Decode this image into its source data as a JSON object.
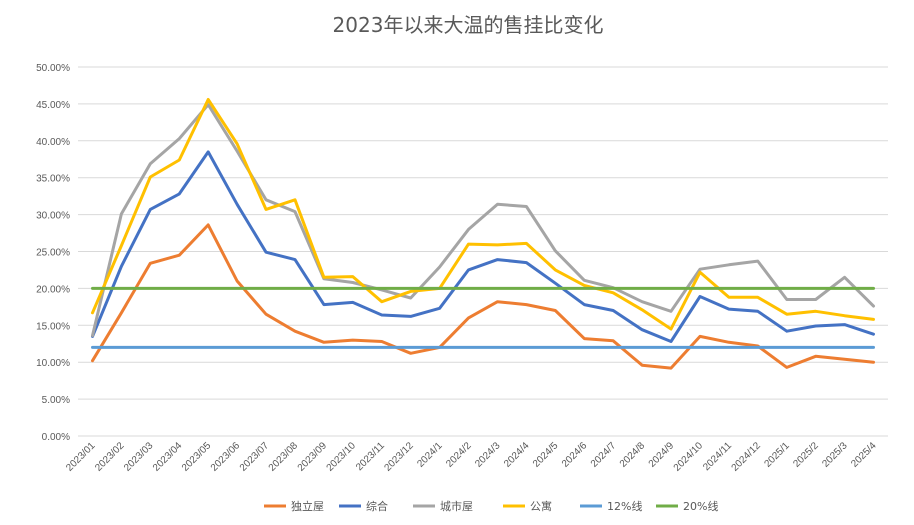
{
  "chart_data": {
    "type": "line",
    "title": "2023年以来大温的售挂比变化",
    "xlabel": "",
    "ylabel": "",
    "ylim": [
      0,
      50
    ],
    "yticks": [
      "0.00%",
      "5.00%",
      "10.00%",
      "15.00%",
      "20.00%",
      "25.00%",
      "30.00%",
      "35.00%",
      "40.00%",
      "45.00%",
      "50.00%"
    ],
    "grid": true,
    "legend_position": "bottom",
    "categories": [
      "2023/01",
      "2023/02",
      "2023/03",
      "2023/04",
      "2023/05",
      "2023/06",
      "2023/07",
      "2023/08",
      "2023/09",
      "2023/10",
      "2023/11",
      "2023/12",
      "2024/1",
      "2024/2",
      "2024/3",
      "2024/4",
      "2024/5",
      "2024/6",
      "2024/7",
      "2024/8",
      "2024/9",
      "2024/10",
      "2024/11",
      "2024/12",
      "2025/1",
      "2025/2",
      "2025/3",
      "2025/4"
    ],
    "series": [
      {
        "name": "独立屋",
        "color": "#ED7D31",
        "values": [
          10.2,
          16.7,
          23.4,
          24.5,
          28.6,
          21.0,
          16.5,
          14.2,
          12.7,
          13.0,
          12.8,
          11.2,
          12.0,
          16.0,
          18.2,
          17.8,
          17.0,
          13.2,
          12.9,
          9.6,
          9.2,
          13.5,
          12.7,
          12.2,
          9.3,
          10.8,
          10.4,
          10.0
        ]
      },
      {
        "name": "综合",
        "color": "#4472C4",
        "values": [
          13.5,
          23.0,
          30.7,
          32.8,
          38.5,
          31.4,
          24.9,
          23.9,
          17.8,
          18.1,
          16.4,
          16.2,
          17.3,
          22.5,
          23.9,
          23.5,
          20.7,
          17.8,
          17.0,
          14.4,
          12.8,
          18.9,
          17.2,
          16.9,
          14.2,
          14.9,
          15.1,
          13.8
        ]
      },
      {
        "name": "城市屋",
        "color": "#A5A5A5",
        "values": [
          13.6,
          30.1,
          36.9,
          40.3,
          44.9,
          38.6,
          32.0,
          30.4,
          21.3,
          20.8,
          19.8,
          18.7,
          22.9,
          28.0,
          31.4,
          31.1,
          25.1,
          21.1,
          20.1,
          18.2,
          16.9,
          22.6,
          23.2,
          23.7,
          18.5,
          18.5,
          21.5,
          17.6
        ]
      },
      {
        "name": "公寓",
        "color": "#FFC000",
        "values": [
          16.7,
          25.8,
          35.1,
          37.4,
          45.6,
          39.6,
          30.7,
          32.0,
          21.5,
          21.6,
          18.2,
          19.6,
          20.0,
          26.0,
          25.9,
          26.1,
          22.5,
          20.4,
          19.4,
          17.1,
          14.5,
          22.2,
          18.8,
          18.8,
          16.5,
          16.9,
          16.3,
          15.8
        ]
      },
      {
        "name": "12%线",
        "color": "#5B9BD5",
        "values": [
          12,
          12,
          12,
          12,
          12,
          12,
          12,
          12,
          12,
          12,
          12,
          12,
          12,
          12,
          12,
          12,
          12,
          12,
          12,
          12,
          12,
          12,
          12,
          12,
          12,
          12,
          12,
          12
        ]
      },
      {
        "name": "20%线",
        "color": "#70AD47",
        "values": [
          20,
          20,
          20,
          20,
          20,
          20,
          20,
          20,
          20,
          20,
          20,
          20,
          20,
          20,
          20,
          20,
          20,
          20,
          20,
          20,
          20,
          20,
          20,
          20,
          20,
          20,
          20,
          20
        ]
      }
    ]
  }
}
